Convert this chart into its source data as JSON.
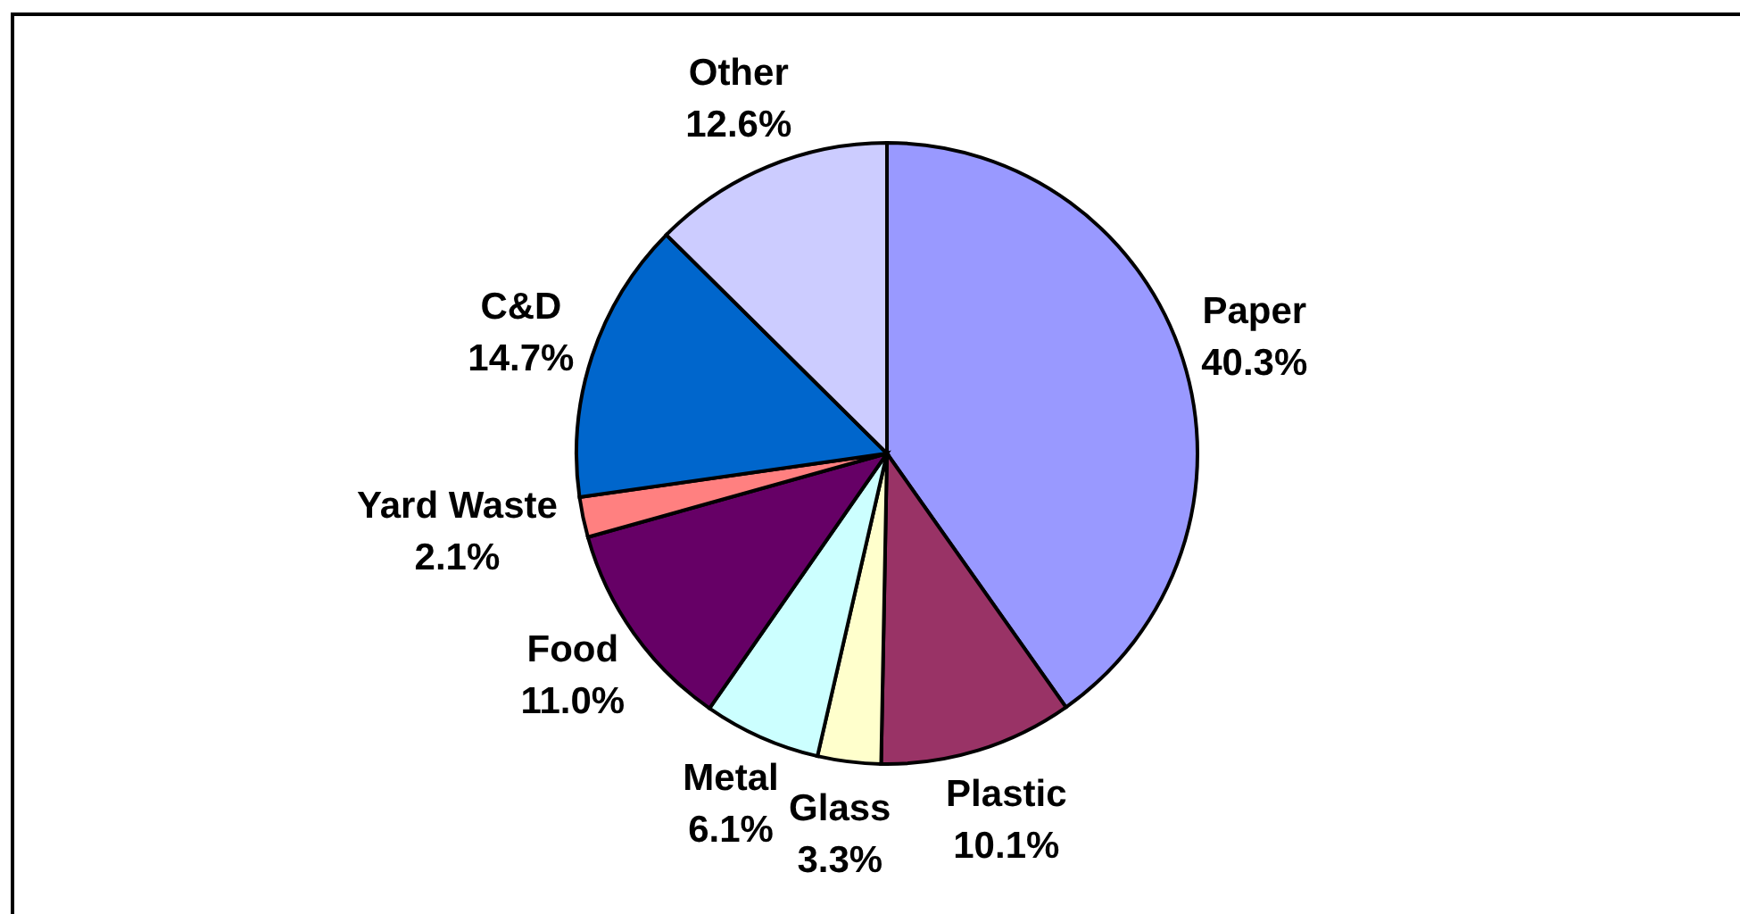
{
  "chart_data": {
    "type": "pie",
    "categories": [
      "Paper",
      "Plastic",
      "Glass",
      "Metal",
      "Food",
      "Yard Waste",
      "C&D",
      "Other"
    ],
    "values": [
      40.3,
      10.1,
      3.3,
      6.1,
      11.0,
      2.1,
      14.7,
      12.6
    ],
    "colors": [
      "#9999ff",
      "#993366",
      "#ffffcc",
      "#ccffff",
      "#660066",
      "#ff8080",
      "#0066cc",
      "#ccccff"
    ],
    "value_labels": [
      "40.3%",
      "10.1%",
      "3.3%",
      "6.1%",
      "11.0%",
      "2.1%",
      "14.7%",
      "12.6%"
    ]
  }
}
